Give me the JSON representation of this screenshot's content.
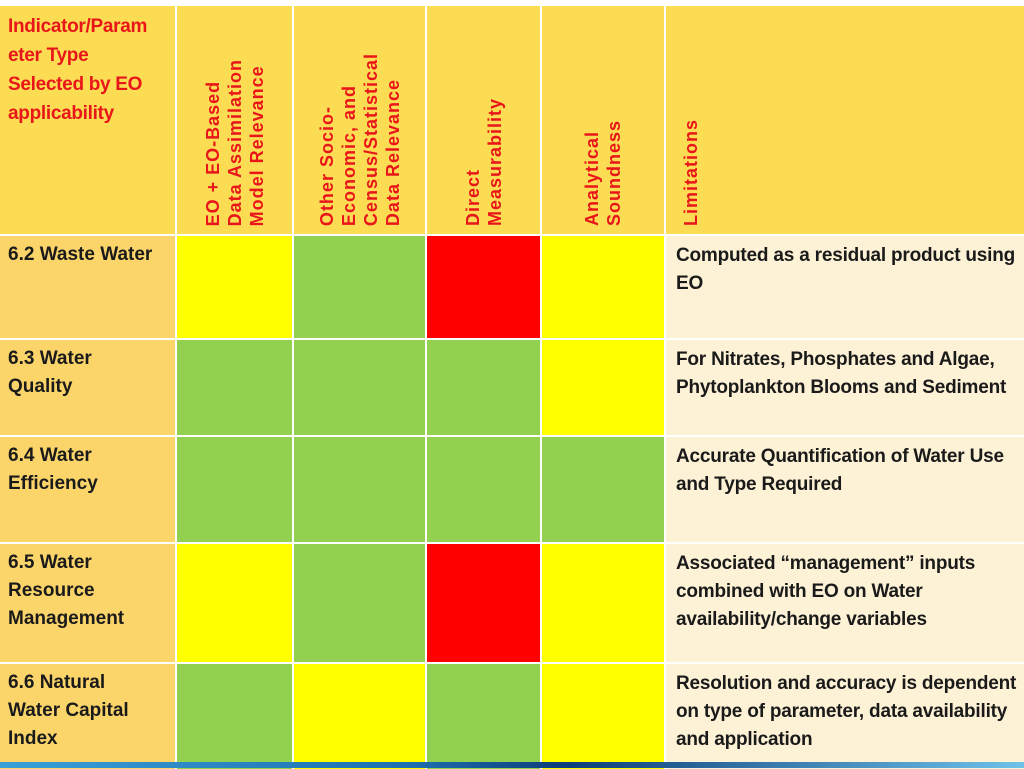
{
  "header": {
    "corner": [
      "Indicator/Param",
      "eter Type",
      "Selected by EO",
      "applicability"
    ],
    "columns": [
      "EO + EO-Based\nData Assimilation\nModel Relevance",
      "Other Socio-\nEconomic, and\nCensus/Statistical\nData Relevance",
      "Direct\nMeasurability",
      "Analytical\nSoundness",
      "Limitations"
    ]
  },
  "colors": {
    "yellow": "#ffff00",
    "green": "#92d050",
    "red": "#ff0000"
  },
  "rows": [
    {
      "label": "6.2 Waste Water",
      "ratings": [
        "yellow",
        "green",
        "red",
        "yellow"
      ],
      "limitation": "Computed as a residual product using EO"
    },
    {
      "label": "6.3 Water\nQuality",
      "ratings": [
        "green",
        "green",
        "green",
        "yellow"
      ],
      "limitation": "For Nitrates, Phosphates and Algae, Phytoplankton Blooms and Sediment"
    },
    {
      "label": "6.4 Water\nEfficiency",
      "ratings": [
        "green",
        "green",
        "green",
        "green"
      ],
      "limitation": "Accurate Quantification of Water Use and Type Required"
    },
    {
      "label": "6.5 Water\nResource\nManagement",
      "ratings": [
        "yellow",
        "green",
        "red",
        "yellow"
      ],
      "limitation": "Associated “management” inputs combined with EO on Water availability/change variables"
    },
    {
      "label": "6.6 Natural\nWater Capital\nIndex",
      "ratings": [
        "green",
        "yellow",
        "green",
        "yellow"
      ],
      "limitation": "Resolution and accuracy is dependent on type of parameter, data availability and application"
    }
  ]
}
